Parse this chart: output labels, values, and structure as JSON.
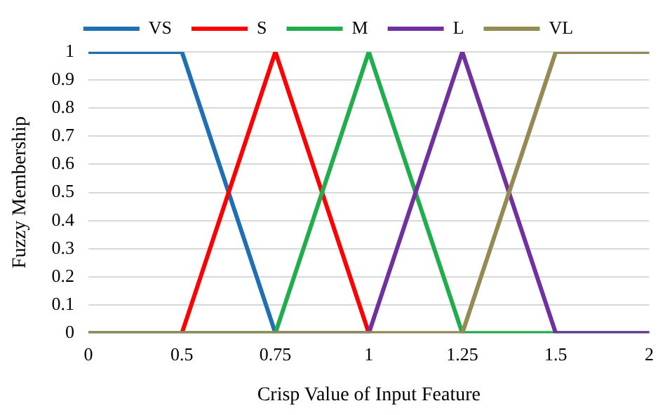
{
  "chart_data": {
    "type": "line",
    "xlabel": "Crisp Value of Input Feature",
    "ylabel": "Fuzzy Membership",
    "categories": [
      "0",
      "0.5",
      "0.75",
      "1",
      "1.25",
      "1.5",
      "2"
    ],
    "series": [
      {
        "name": "VS",
        "color": "#1f6fb5",
        "values": [
          1,
          1,
          0,
          null,
          null,
          null,
          null
        ]
      },
      {
        "name": "S",
        "color": "#ff0000",
        "values": [
          null,
          0,
          1,
          0,
          null,
          null,
          null
        ]
      },
      {
        "name": "M",
        "color": "#20ad4b",
        "values": [
          0,
          0,
          0,
          1,
          0,
          0,
          0
        ]
      },
      {
        "name": "L",
        "color": "#7030a0",
        "values": [
          null,
          null,
          0,
          0,
          1,
          0,
          0
        ]
      },
      {
        "name": "VL",
        "color": "#948a54",
        "values": [
          0,
          0,
          0,
          0,
          0,
          1,
          1
        ]
      }
    ],
    "ylim": [
      0,
      1
    ],
    "yticks": [
      0,
      0.1,
      0.2,
      0.3,
      0.4,
      0.5,
      0.6,
      0.7,
      0.8,
      0.9,
      1
    ],
    "grid": "y",
    "legend": "top",
    "marker": "none",
    "line_style": "solid"
  }
}
